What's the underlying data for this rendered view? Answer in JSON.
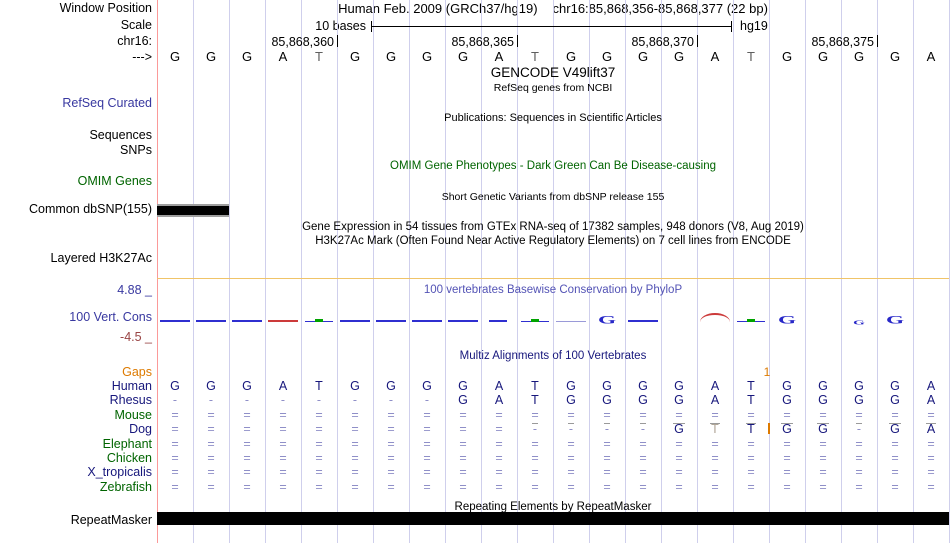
{
  "header": {
    "window_position_label": "Window Position",
    "assembly_title": "Human Feb. 2009 (GRCh37/hg19)",
    "position_title": "chr16:85,868,356-85,868,377 (22 bp)",
    "scale_value": "10 bases",
    "assembly_short": "hg19",
    "ruler_tick_labels": [
      "85,868,360",
      "85,868,365",
      "85,868,370",
      "85,868,375"
    ]
  },
  "sequence": [
    "G",
    "G",
    "G",
    "A",
    "T",
    "G",
    "G",
    "G",
    "G",
    "A",
    "T",
    "G",
    "G",
    "G",
    "G",
    "A",
    "T",
    "G",
    "G",
    "G",
    "G",
    "A"
  ],
  "left_labels": [
    {
      "id": "window-position",
      "text": "Window Position",
      "color": "black",
      "clickable": false
    },
    {
      "id": "scale",
      "text": "Scale",
      "color": "black",
      "clickable": false
    },
    {
      "id": "chrom",
      "text": "chr16:",
      "color": "black",
      "clickable": false
    },
    {
      "id": "strand",
      "text": "--->",
      "color": "black",
      "clickable": false
    },
    {
      "id": "refseq-curated",
      "text": "RefSeq Curated",
      "color": "track_blue",
      "clickable": true
    },
    {
      "id": "sequences",
      "text": "Sequences",
      "color": "black",
      "clickable": true
    },
    {
      "id": "snps",
      "text": "SNPs",
      "color": "black",
      "clickable": true
    },
    {
      "id": "omim-genes",
      "text": "OMIM Genes",
      "color": "green",
      "clickable": true
    },
    {
      "id": "common-dbsnp",
      "text": "Common dbSNP(155)",
      "color": "black",
      "clickable": true
    },
    {
      "id": "layered-h3k27ac",
      "text": "Layered H3K27Ac",
      "color": "black",
      "clickable": true
    },
    {
      "id": "cons-max",
      "text": "4.88 _",
      "color": "track_blue",
      "clickable": false
    },
    {
      "id": "vert-cons",
      "text": "100 Vert. Cons",
      "color": "track_blue",
      "clickable": true
    },
    {
      "id": "cons-min",
      "text": "-4.5 _",
      "color": "maroon",
      "clickable": false
    },
    {
      "id": "repeatmasker",
      "text": "RepeatMasker",
      "color": "black",
      "clickable": true
    }
  ],
  "center_titles": [
    {
      "id": "gencode-title",
      "text": "GENCODE V49lift37",
      "color": "black"
    },
    {
      "id": "refseq-note",
      "text": "RefSeq genes from NCBI",
      "color": "black"
    },
    {
      "id": "publications-title",
      "text": "Publications: Sequences in Scientific Articles",
      "color": "black"
    },
    {
      "id": "omim-title",
      "text": "OMIM Gene Phenotypes - Dark Green Can Be Disease-causing",
      "color": "green"
    },
    {
      "id": "dbsnp-title",
      "text": "Short Genetic Variants from dbSNP release 155",
      "color": "black"
    },
    {
      "id": "gtex-title",
      "text": "Gene Expression in 54 tissues from GTEx RNA-seq of 17382 samples, 948 donors (V8, Aug 2019)",
      "color": "black"
    },
    {
      "id": "h3k27ac-title",
      "text": "H3K27Ac Mark (Often Found Near Active Regulatory Elements) on 7 cell lines from ENCODE",
      "color": "black"
    },
    {
      "id": "phylop-title",
      "text": "100 vertebrates Basewise Conservation by PhyloP",
      "color": "cons_blue"
    },
    {
      "id": "multiz-title",
      "text": "Multiz Alignments of 100 Vertebrates",
      "color": "navy"
    },
    {
      "id": "repeat-title",
      "text": "Repeating Elements by RepeatMasker",
      "color": "black"
    }
  ],
  "conservation": {
    "wiggle": [
      {
        "col": 0,
        "t": "dash"
      },
      {
        "col": 1,
        "t": "dash"
      },
      {
        "col": 2,
        "t": "dash"
      },
      {
        "col": 3,
        "t": "dash-red"
      },
      {
        "col": 4,
        "t": "tick-green"
      },
      {
        "col": 5,
        "t": "dash"
      },
      {
        "col": 6,
        "t": "dash"
      },
      {
        "col": 7,
        "t": "dash"
      },
      {
        "col": 8,
        "t": "dash"
      },
      {
        "col": 9,
        "t": "dash-short"
      },
      {
        "col": 10,
        "t": "tick-green"
      },
      {
        "col": 11,
        "t": "dash-faint"
      },
      {
        "col": 12,
        "t": "G"
      },
      {
        "col": 13,
        "t": "dash"
      },
      {
        "col": 15,
        "t": "arc-red"
      },
      {
        "col": 16,
        "t": "tick-green"
      },
      {
        "col": 17,
        "t": "G"
      },
      {
        "col": 19,
        "t": "G-small"
      },
      {
        "col": 20,
        "t": "G"
      }
    ]
  },
  "alignment": {
    "gaps_label": "Gaps",
    "gap_insert_count": "1",
    "species": [
      {
        "name": "Human",
        "name_color": "navy",
        "cells": [
          "G",
          "G",
          "G",
          "A",
          "T",
          "G",
          "G",
          "G",
          "G",
          "A",
          "T",
          "G",
          "G",
          "G",
          "G",
          "A",
          "T",
          "G",
          "G",
          "G",
          "G",
          "A"
        ]
      },
      {
        "name": "Rhesus",
        "name_color": "navy",
        "cells": [
          "-",
          "-",
          "-",
          "-",
          "-",
          "-",
          "-",
          "-",
          "G",
          "A",
          "T",
          "G",
          "G",
          "G",
          "G",
          "A",
          "T",
          "G",
          "G",
          "G",
          "G",
          "A"
        ]
      },
      {
        "name": "Mouse",
        "name_color": "green",
        "cells": [
          "=",
          "=",
          "=",
          "=",
          "=",
          "=",
          "=",
          "=",
          "=",
          "=",
          "=",
          "=",
          "=",
          "=",
          "=",
          "=",
          "=",
          "=",
          "=",
          "=",
          "=",
          "="
        ]
      },
      {
        "name": "Dog",
        "name_color": "navy",
        "cells": [
          "=",
          "=",
          "=",
          "=",
          "=",
          "=",
          "=",
          "=",
          "=",
          "=",
          "-",
          "-",
          "-",
          "-",
          "G",
          "T",
          "T",
          "G",
          "G",
          "-",
          "G",
          "A"
        ],
        "light_cells": [
          15
        ],
        "overline_cells": [
          10,
          11,
          12,
          13,
          14,
          15,
          16,
          17,
          18,
          19,
          20,
          21
        ],
        "insert_before_cell": 17
      },
      {
        "name": "Elephant",
        "name_color": "green",
        "cells": [
          "=",
          "=",
          "=",
          "=",
          "=",
          "=",
          "=",
          "=",
          "=",
          "=",
          "=",
          "=",
          "=",
          "=",
          "=",
          "=",
          "=",
          "=",
          "=",
          "=",
          "=",
          "="
        ]
      },
      {
        "name": "Chicken",
        "name_color": "green",
        "cells": [
          "=",
          "=",
          "=",
          "=",
          "=",
          "=",
          "=",
          "=",
          "=",
          "=",
          "=",
          "=",
          "=",
          "=",
          "=",
          "=",
          "=",
          "=",
          "=",
          "=",
          "=",
          "="
        ]
      },
      {
        "name": "X_tropicalis",
        "name_color": "navy",
        "cells": [
          "=",
          "=",
          "=",
          "=",
          "=",
          "=",
          "=",
          "=",
          "=",
          "=",
          "=",
          "=",
          "=",
          "=",
          "=",
          "=",
          "=",
          "=",
          "=",
          "=",
          "=",
          "="
        ]
      },
      {
        "name": "Zebrafish",
        "name_color": "green",
        "cells": [
          "=",
          "=",
          "=",
          "=",
          "=",
          "=",
          "=",
          "=",
          "=",
          "=",
          "=",
          "=",
          "=",
          "=",
          "=",
          "=",
          "=",
          "=",
          "=",
          "=",
          "=",
          "="
        ]
      }
    ]
  },
  "colors": {
    "black": "#000000",
    "navy": "#17177c",
    "track_blue": "#3838a0",
    "cons_blue": "#5353b5",
    "green": "#006400",
    "orange": "#dd7a00",
    "maroon": "#994444",
    "lavender": "#8f8fc8",
    "wiggle_blue": "#2f2fd0",
    "wiggle_red": "#cc3a3a",
    "wiggle_green": "#00a300",
    "grid_line": "#cfcfec",
    "edge_line": "#fb9a99",
    "gold_line": "#f0c468",
    "bar_black": "#000000",
    "bar_gray_edge": "#9e9e9e",
    "base_gray": "#5f5f5f",
    "dog_light_base": "#b0a698"
  }
}
